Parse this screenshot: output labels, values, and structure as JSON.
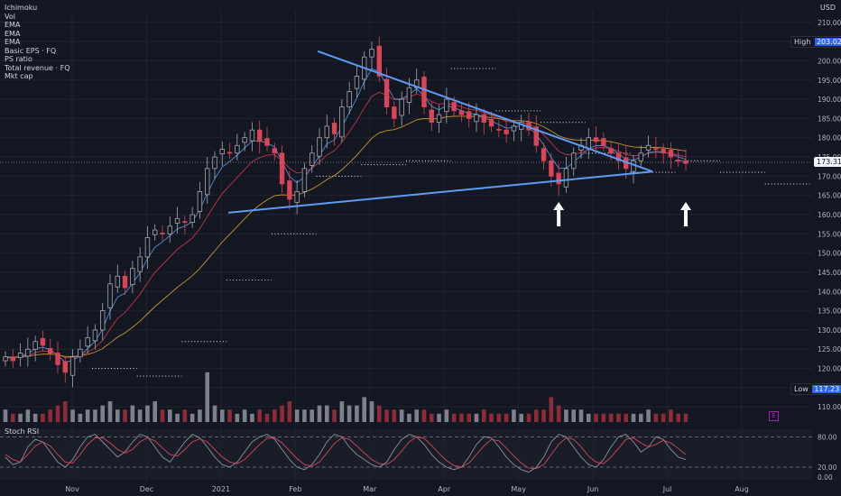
{
  "legend": {
    "indicators": [
      "Ichimoku",
      "Vol",
      "EMA",
      "EMA",
      "EMA",
      "Basic EPS · FQ",
      "PS ratio",
      "Total revenue · FQ",
      "Mkt cap"
    ]
  },
  "price_axis": {
    "currency": "USD",
    "high_label": "High",
    "high_value": "203.02",
    "low_label": "Low",
    "low_value": "117.23",
    "last_price": "173.31"
  },
  "oscillator": {
    "name": "Stoch RSI"
  },
  "colors": {
    "background": "#131722",
    "up": "#a6a9b1",
    "down": "#d94557",
    "trendline": "#5b9cf6",
    "ema_fast": "#4f8fd6",
    "ema_mid": "#c2334a",
    "ema_slow": "#c8952a",
    "stoch_k": "#8a8f99",
    "stoch_d": "#d94557"
  },
  "chart_data": [
    {
      "type": "candlestick",
      "title": "",
      "ylim": [
        107,
        213
      ],
      "yticks": [
        "110.00",
        "115.00",
        "120.00",
        "125.00",
        "130.00",
        "135.00",
        "140.00",
        "145.00",
        "150.00",
        "155.00",
        "160.00",
        "165.00",
        "170.00",
        "175.00",
        "180.00",
        "185.00",
        "190.00",
        "195.00",
        "200.00",
        "205.00",
        "210.00"
      ],
      "xticks": [
        "Nov",
        "Dec",
        "2021",
        "Feb",
        "Mar",
        "Apr",
        "May",
        "Jun",
        "Jul",
        "Aug"
      ],
      "close_series": [
        123,
        122,
        124,
        125,
        127,
        126,
        124,
        121,
        119,
        123,
        125,
        128,
        130,
        135,
        142,
        144,
        141,
        146,
        149,
        154,
        156,
        155,
        157,
        159,
        158,
        160,
        166,
        172,
        175,
        177,
        176,
        178,
        180,
        182,
        179,
        178,
        176,
        168,
        164,
        166,
        172,
        176,
        180,
        183,
        181,
        188,
        192,
        196,
        201,
        203,
        196,
        188,
        185,
        190,
        193,
        195,
        188,
        184,
        186,
        190,
        187,
        186,
        185,
        186,
        184,
        183,
        182,
        181,
        183,
        184,
        182,
        178,
        174,
        170,
        168,
        172,
        176,
        178,
        180,
        179,
        178,
        176,
        174,
        172,
        174,
        176,
        178,
        177,
        176,
        175,
        174,
        173.31
      ],
      "trendlines": [
        {
          "from": [
            3.1,
            160.5
          ],
          "to": [
            8.8,
            171.2
          ]
        },
        {
          "from": [
            4.3,
            202.5
          ],
          "to": [
            8.8,
            171.2
          ]
        }
      ],
      "annotations": [
        "arrow-up",
        "arrow-up"
      ]
    },
    {
      "type": "line",
      "title": "Stoch RSI",
      "ylim": [
        -5,
        95
      ],
      "yticks": [
        "0.00",
        "20.00",
        "80.00"
      ],
      "bands": [
        20,
        80
      ],
      "series": [
        {
          "values": [
            40,
            25,
            30,
            60,
            75,
            70,
            50,
            30,
            20,
            35,
            60,
            80,
            85,
            70,
            55,
            40,
            50,
            70,
            85,
            80,
            60,
            40,
            30,
            50,
            70,
            85,
            78,
            60,
            40,
            25,
            20,
            30,
            50,
            70,
            80,
            85,
            75,
            55,
            35,
            20,
            15,
            25,
            45,
            70,
            85,
            80,
            60,
            45,
            35,
            25,
            20,
            30,
            55,
            75,
            85,
            80,
            65,
            45,
            30,
            20,
            15,
            20,
            40,
            65,
            80,
            78,
            60,
            40,
            25,
            15,
            10,
            20,
            40,
            70,
            85,
            80,
            60,
            40,
            25,
            20,
            35,
            60,
            80,
            85,
            70,
            50,
            60,
            80,
            75,
            55,
            40,
            35
          ]
        },
        {
          "values": [
            45,
            35,
            30,
            45,
            62,
            70,
            62,
            45,
            30,
            28,
            45,
            65,
            78,
            78,
            68,
            55,
            48,
            55,
            70,
            78,
            72,
            58,
            45,
            42,
            55,
            70,
            76,
            70,
            55,
            40,
            30,
            27,
            35,
            50,
            65,
            77,
            78,
            68,
            52,
            37,
            25,
            22,
            30,
            48,
            67,
            78,
            75,
            62,
            48,
            35,
            27,
            25,
            35,
            52,
            70,
            80,
            77,
            63,
            47,
            33,
            23,
            20,
            28,
            45,
            62,
            75,
            72,
            58,
            42,
            28,
            18,
            17,
            25,
            45,
            65,
            78,
            75,
            60,
            42,
            30,
            27,
            40,
            57,
            75,
            78,
            68,
            60,
            65,
            73,
            68,
            57,
            45
          ]
        }
      ]
    },
    {
      "type": "bar",
      "title": "Vol",
      "values": [
        3,
        2,
        2,
        3,
        2,
        2,
        3,
        4,
        5,
        3,
        2,
        3,
        3,
        4,
        5,
        3,
        3,
        4,
        3,
        4,
        5,
        3,
        3,
        2,
        3,
        2,
        3,
        12,
        4,
        3,
        3,
        2,
        3,
        2,
        3,
        2,
        3,
        4,
        5,
        3,
        3,
        3,
        4,
        4,
        3,
        5,
        4,
        4,
        6,
        5,
        4,
        3,
        3,
        3,
        2,
        3,
        3,
        2,
        2,
        3,
        2,
        2,
        2,
        2,
        3,
        2,
        2,
        2,
        3,
        2,
        2,
        3,
        3,
        6,
        4,
        3,
        3,
        3,
        2,
        2,
        2,
        2,
        2,
        2,
        2,
        2,
        3,
        2,
        2,
        3,
        2,
        2
      ]
    }
  ]
}
